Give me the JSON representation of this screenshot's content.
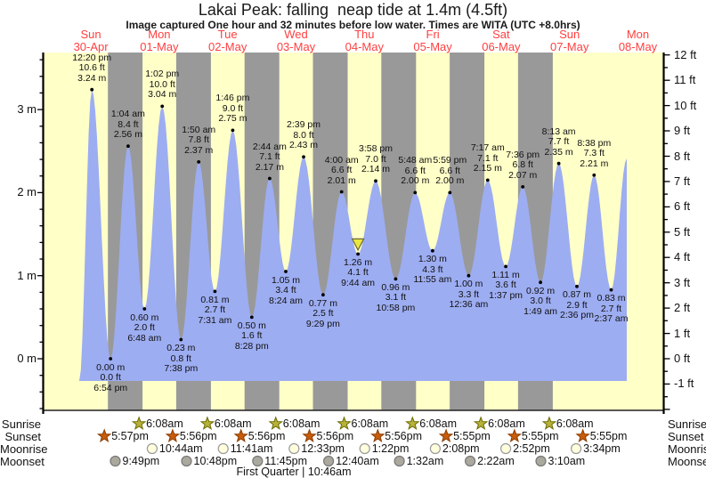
{
  "title": "Lakai Peak: falling  neap tide at 1.4m (4.5ft)",
  "subtitle": "Image captured One hour and 32 minutes before low water. Times are WITA (UTC +8.0hrs)",
  "days": [
    {
      "name": "Sun",
      "date": "30-Apr"
    },
    {
      "name": "Mon",
      "date": "01-May"
    },
    {
      "name": "Tue",
      "date": "02-May"
    },
    {
      "name": "Wed",
      "date": "03-May"
    },
    {
      "name": "Thu",
      "date": "04-May"
    },
    {
      "name": "Fri",
      "date": "05-May"
    },
    {
      "name": "Sat",
      "date": "06-May"
    },
    {
      "name": "Sun",
      "date": "07-May"
    },
    {
      "name": "Mon",
      "date": "08-May"
    }
  ],
  "axis_left": {
    "unit": "m",
    "ticks": [
      0,
      1,
      2,
      3
    ]
  },
  "axis_right": {
    "unit": "ft",
    "ticks": [
      -1,
      0,
      1,
      2,
      3,
      4,
      5,
      6,
      7,
      8,
      9,
      10,
      11,
      12
    ]
  },
  "chart_data": {
    "type": "area",
    "title": "Lakai Peak tide curve, Sun 30-Apr to Mon 08-May",
    "ylabel_left": "m",
    "ylabel_right": "ft",
    "y_left_range": [
      -0.6,
      3.7
    ],
    "y_right_range": [
      -2,
      12.1
    ],
    "grid": false,
    "extremes": [
      {
        "kind": "high",
        "day": 0,
        "time": "12:20 pm",
        "ft": "10.6 ft",
        "m": "3.24 m"
      },
      {
        "kind": "low",
        "day": 0,
        "time": "6:54 pm",
        "ft": "0.0 ft",
        "m": "0.00 m"
      },
      {
        "kind": "high",
        "day": 1,
        "time": "1:04 am",
        "ft": "8.4 ft",
        "m": "2.56 m"
      },
      {
        "kind": "low",
        "day": 1,
        "time": "6:48 am",
        "ft": "2.0 ft",
        "m": "0.60 m"
      },
      {
        "kind": "high",
        "day": 1,
        "time": "1:02 pm",
        "ft": "10.0 ft",
        "m": "3.04 m"
      },
      {
        "kind": "low",
        "day": 1,
        "time": "7:38 pm",
        "ft": "0.8 ft",
        "m": "0.23 m"
      },
      {
        "kind": "high",
        "day": 2,
        "time": "1:50 am",
        "ft": "7.8 ft",
        "m": "2.37 m"
      },
      {
        "kind": "low",
        "day": 2,
        "time": "7:31 am",
        "ft": "2.7 ft",
        "m": "0.81 m"
      },
      {
        "kind": "high",
        "day": 2,
        "time": "1:46 pm",
        "ft": "9.0 ft",
        "m": "2.75 m"
      },
      {
        "kind": "low",
        "day": 2,
        "time": "8:28 pm",
        "ft": "1.6 ft",
        "m": "0.50 m"
      },
      {
        "kind": "high",
        "day": 3,
        "time": "2:44 am",
        "ft": "7.1 ft",
        "m": "2.17 m"
      },
      {
        "kind": "low",
        "day": 3,
        "time": "8:24 am",
        "ft": "3.4 ft",
        "m": "1.05 m"
      },
      {
        "kind": "high",
        "day": 3,
        "time": "2:39 pm",
        "ft": "8.0 ft",
        "m": "2.43 m"
      },
      {
        "kind": "low",
        "day": 3,
        "time": "9:29 pm",
        "ft": "2.5 ft",
        "m": "0.77 m"
      },
      {
        "kind": "high",
        "day": 4,
        "time": "4:00 am",
        "ft": "6.6 ft",
        "m": "2.01 m"
      },
      {
        "kind": "low",
        "day": 4,
        "time": "9:44 am",
        "ft": "4.1 ft",
        "m": "1.26 m"
      },
      {
        "kind": "high",
        "day": 4,
        "time": "3:58 pm",
        "ft": "7.0 ft",
        "m": "2.14 m"
      },
      {
        "kind": "low",
        "day": 4,
        "time": "10:58 pm",
        "ft": "3.1 ft",
        "m": "0.96 m"
      },
      {
        "kind": "high",
        "day": 5,
        "time": "5:48 am",
        "ft": "6.6 ft",
        "m": "2.00 m"
      },
      {
        "kind": "low",
        "day": 5,
        "time": "11:55 am",
        "ft": "4.3 ft",
        "m": "1.30 m"
      },
      {
        "kind": "high",
        "day": 5,
        "time": "5:59 pm",
        "ft": "6.6 ft",
        "m": "2.00 m"
      },
      {
        "kind": "low",
        "day": 6,
        "time": "12:36 am",
        "ft": "3.3 ft",
        "m": "1.00 m"
      },
      {
        "kind": "high",
        "day": 6,
        "time": "7:17 am",
        "ft": "7.1 ft",
        "m": "2.15 m"
      },
      {
        "kind": "low",
        "day": 6,
        "time": "1:37 pm",
        "ft": "3.6 ft",
        "m": "1.11 m"
      },
      {
        "kind": "high",
        "day": 6,
        "time": "7:36 pm",
        "ft": "6.8 ft",
        "m": "2.07 m"
      },
      {
        "kind": "low",
        "day": 7,
        "time": "1:49 am",
        "ft": "3.0 ft",
        "m": "0.92 m"
      },
      {
        "kind": "high",
        "day": 7,
        "time": "8:13 am",
        "ft": "7.7 ft",
        "m": "2.35 m"
      },
      {
        "kind": "low",
        "day": 7,
        "time": "2:36 pm",
        "ft": "2.9 ft",
        "m": "0.87 m"
      },
      {
        "kind": "high",
        "day": 7,
        "time": "8:38 pm",
        "ft": "7.3 ft",
        "m": "2.21 m"
      },
      {
        "kind": "low",
        "day": 8,
        "time": "2:37 am",
        "ft": "2.7 ft",
        "m": "0.83 m"
      }
    ],
    "current_marker_index": 15,
    "series_start": {
      "day": 0,
      "hour": 7.9,
      "height_m": -0.27
    },
    "series_end": {
      "day": 8,
      "hour": 8.1,
      "height_m": 2.41
    }
  },
  "sun_moon": {
    "row_labels": [
      "Sunrise",
      "Sunset",
      "Moonrise",
      "Moonset"
    ],
    "sunrise": [
      {
        "day": 1,
        "time": "6:08am"
      },
      {
        "day": 2,
        "time": "6:08am"
      },
      {
        "day": 3,
        "time": "6:08am"
      },
      {
        "day": 4,
        "time": "6:08am"
      },
      {
        "day": 5,
        "time": "6:08am"
      },
      {
        "day": 6,
        "time": "6:08am"
      },
      {
        "day": 7,
        "time": "6:08am"
      }
    ],
    "sunset": [
      {
        "day": 0,
        "time": "5:57pm"
      },
      {
        "day": 1,
        "time": "5:56pm"
      },
      {
        "day": 2,
        "time": "5:56pm"
      },
      {
        "day": 3,
        "time": "5:56pm"
      },
      {
        "day": 4,
        "time": "5:56pm"
      },
      {
        "day": 5,
        "time": "5:55pm"
      },
      {
        "day": 6,
        "time": "5:55pm"
      },
      {
        "day": 7,
        "time": "5:55pm"
      }
    ],
    "moonrise": [
      {
        "day": 1,
        "time": "10:44am"
      },
      {
        "day": 2,
        "time": "11:41am"
      },
      {
        "day": 3,
        "time": "12:33pm"
      },
      {
        "day": 4,
        "time": "1:22pm"
      },
      {
        "day": 5,
        "time": "2:08pm"
      },
      {
        "day": 6,
        "time": "2:52pm"
      },
      {
        "day": 7,
        "time": "3:34pm"
      }
    ],
    "moonset": [
      {
        "day": 0,
        "time": "9:49pm"
      },
      {
        "day": 1,
        "time": "10:48pm"
      },
      {
        "day": 2,
        "time": "11:45pm"
      },
      {
        "day": 4,
        "time": "12:40am"
      },
      {
        "day": 5,
        "time": "1:32am"
      },
      {
        "day": 6,
        "time": "2:22am"
      },
      {
        "day": 7,
        "time": "3:10am"
      }
    ],
    "footer": "First Quarter | 10:46am"
  },
  "colors": {
    "day_background": "#ffffc8",
    "night_band": "#999999",
    "tide_fill": "#9dadf2",
    "day_label_red": "#ff4040",
    "axis_black": "#111111",
    "sunrise_star": "#b6b23a",
    "sunrise_star_edge": "#6b6b00",
    "sunset_star": "#c95c0a",
    "sunset_star_edge": "#8a3d00",
    "moonrise_fill": "#ffffde",
    "moonrise_edge": "#999999",
    "moonset_fill": "#aba89e",
    "moonset_edge": "#777777",
    "current_marker": "#ece73c",
    "current_marker_edge": "#6a6a38"
  }
}
